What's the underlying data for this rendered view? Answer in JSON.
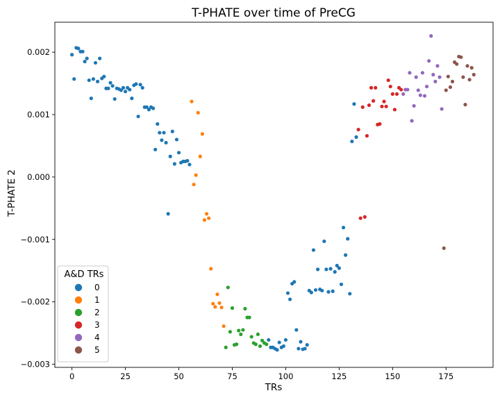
{
  "chart_data": {
    "type": "scatter",
    "title": "T-PHATE over time of PreCG",
    "xlabel": "TRs",
    "ylabel": "T-PHATE 2",
    "xlim": [
      -8,
      197
    ],
    "ylim": [
      -0.00305,
      0.00248
    ],
    "xticks": [
      0,
      25,
      50,
      75,
      100,
      125,
      150,
      175
    ],
    "xtick_labels": [
      "0",
      "25",
      "50",
      "75",
      "100",
      "125",
      "150",
      "175"
    ],
    "yticks": [
      -0.003,
      -0.002,
      -0.001,
      0.0,
      0.001,
      0.002
    ],
    "ytick_labels": [
      "−0.003",
      "−0.002",
      "−0.001",
      "0.000",
      "0.001",
      "0.002"
    ],
    "grid": false,
    "legend": {
      "title": "A&D TRs",
      "placement": "lower-left",
      "entries": [
        "0",
        "1",
        "2",
        "3",
        "4",
        "5"
      ]
    },
    "colors": [
      "#1f77b4",
      "#ff7f0e",
      "#2ca02c",
      "#d62728",
      "#9467bd",
      "#8c564b"
    ],
    "series": [
      {
        "name": "0",
        "color": "#1f77b4",
        "points": [
          [
            0,
            0.00196
          ],
          [
            1,
            0.00157
          ],
          [
            2,
            0.00207
          ],
          [
            3,
            0.00206
          ],
          [
            4,
            0.00201
          ],
          [
            5,
            0.00201
          ],
          [
            6,
            0.00185
          ],
          [
            7,
            0.0019
          ],
          [
            8,
            0.00155
          ],
          [
            9,
            0.00126
          ],
          [
            10,
            0.00157
          ],
          [
            11,
            0.00183
          ],
          [
            12,
            0.00153
          ],
          [
            13,
            0.0019
          ],
          [
            14,
            0.00158
          ],
          [
            15,
            0.00161
          ],
          [
            16,
            0.00142
          ],
          [
            17,
            0.00142
          ],
          [
            18,
            0.00151
          ],
          [
            19,
            0.00146
          ],
          [
            20,
            0.00125
          ],
          [
            21,
            0.00142
          ],
          [
            22,
            0.00141
          ],
          [
            23,
            0.00139
          ],
          [
            24,
            0.00143
          ],
          [
            25,
            0.00137
          ],
          [
            26,
            0.00143
          ],
          [
            27,
            0.0014
          ],
          [
            28,
            0.00126
          ],
          [
            29,
            0.00147
          ],
          [
            30,
            0.00149
          ],
          [
            31,
            0.00097
          ],
          [
            32,
            0.00148
          ],
          [
            33,
            0.00143
          ],
          [
            34,
            0.00112
          ],
          [
            35,
            0.00112
          ],
          [
            36,
            0.00108
          ],
          [
            37,
            0.00112
          ],
          [
            38,
            0.0011
          ],
          [
            39,
            0.00044
          ],
          [
            40,
            0.00085
          ],
          [
            41,
            0.00071
          ],
          [
            42,
            0.00059
          ],
          [
            43,
            0.00071
          ],
          [
            44,
            0.00055
          ],
          [
            45,
            -0.00059
          ],
          [
            46,
            0.00033
          ],
          [
            47,
            0.00073
          ],
          [
            48,
            0.00021
          ],
          [
            49,
            0.0006
          ],
          [
            50,
            0.00039
          ],
          [
            51,
            0.00023
          ],
          [
            52,
            0.00025
          ],
          [
            53,
            0.00025
          ],
          [
            54,
            0.00026
          ],
          [
            55,
            0.0002
          ],
          [
            92,
            -0.00261
          ],
          [
            93,
            -0.00273
          ],
          [
            94,
            -0.00273
          ],
          [
            95,
            -0.00275
          ],
          [
            96,
            -0.00277
          ],
          [
            97,
            -0.00265
          ],
          [
            98,
            -0.00273
          ],
          [
            99,
            -0.00271
          ],
          [
            100,
            -0.00261
          ],
          [
            101,
            -0.00186
          ],
          [
            102,
            -0.00196
          ],
          [
            103,
            -0.00171
          ],
          [
            104,
            -0.00168
          ],
          [
            105,
            -0.00245
          ],
          [
            106,
            -0.00275
          ],
          [
            107,
            -0.00264
          ],
          [
            108,
            -0.00276
          ],
          [
            109,
            -0.00275
          ],
          [
            110,
            -0.00269
          ],
          [
            111,
            -0.00182
          ],
          [
            112,
            -0.00185
          ],
          [
            113,
            -0.00117
          ],
          [
            114,
            -0.00181
          ],
          [
            115,
            -0.00148
          ],
          [
            116,
            -0.0018
          ],
          [
            117,
            -0.00182
          ],
          [
            118,
            -0.00103
          ],
          [
            119,
            -0.00148
          ],
          [
            120,
            -0.00184
          ],
          [
            121,
            -0.00147
          ],
          [
            122,
            -0.00183
          ],
          [
            123,
            -0.00152
          ],
          [
            124,
            -0.00142
          ],
          [
            125,
            -0.00146
          ],
          [
            126,
            -0.00172
          ],
          [
            127,
            -0.00081
          ],
          [
            128,
            -0.00125
          ],
          [
            129,
            -0.00099
          ],
          [
            130,
            -0.00187
          ],
          [
            131,
            0.00057
          ],
          [
            132,
            0.00117
          ],
          [
            133,
            0.00064
          ]
        ]
      },
      {
        "name": "1",
        "color": "#ff7f0e",
        "points": [
          [
            56,
            0.00121
          ],
          [
            57,
            -0.00012
          ],
          [
            58,
            3e-05
          ],
          [
            59,
            0.00103
          ],
          [
            60,
            0.00033
          ],
          [
            61,
            0.00069
          ],
          [
            62,
            -0.00069
          ],
          [
            63,
            -0.00059
          ],
          [
            64,
            -0.00066
          ],
          [
            65,
            -0.00147
          ],
          [
            66,
            -0.00203
          ],
          [
            67,
            -0.00208
          ],
          [
            68,
            -0.00188
          ],
          [
            69,
            -0.00202
          ],
          [
            70,
            -0.00209
          ],
          [
            71,
            -0.00239
          ]
        ]
      },
      {
        "name": "2",
        "color": "#2ca02c",
        "points": [
          [
            72,
            -0.00273
          ],
          [
            73,
            -0.00177
          ],
          [
            74,
            -0.00248
          ],
          [
            75,
            -0.0021
          ],
          [
            76,
            -0.00269
          ],
          [
            77,
            -0.00268
          ],
          [
            78,
            -0.00246
          ],
          [
            79,
            -0.00252
          ],
          [
            80,
            -0.00245
          ],
          [
            81,
            -0.00211
          ],
          [
            82,
            -0.00225
          ],
          [
            83,
            -0.00225
          ],
          [
            84,
            -0.00256
          ],
          [
            85,
            -0.00266
          ],
          [
            86,
            -0.00268
          ],
          [
            87,
            -0.00252
          ],
          [
            88,
            -0.00271
          ],
          [
            89,
            -0.00262
          ],
          [
            90,
            -0.00266
          ],
          [
            91,
            -0.00268
          ]
        ]
      },
      {
        "name": "3",
        "color": "#d62728",
        "points": [
          [
            134,
            0.00076
          ],
          [
            135,
            -0.00066
          ],
          [
            136,
            0.00112
          ],
          [
            137,
            -0.00064
          ],
          [
            138,
            0.00066
          ],
          [
            139,
            0.00115
          ],
          [
            140,
            0.00143
          ],
          [
            141,
            0.00122
          ],
          [
            142,
            0.00143
          ],
          [
            143,
            0.00084
          ],
          [
            144,
            0.00085
          ],
          [
            145,
            0.00113
          ],
          [
            146,
            0.00121
          ],
          [
            147,
            0.00113
          ],
          [
            148,
            0.00155
          ],
          [
            149,
            0.00145
          ],
          [
            150,
            0.00133
          ],
          [
            151,
            0.00108
          ],
          [
            152,
            0.00133
          ],
          [
            153,
            0.00143
          ],
          [
            154,
            0.0014
          ]
        ]
      },
      {
        "name": "4",
        "color": "#9467bd",
        "points": [
          [
            155,
            0.00133
          ],
          [
            156,
            0.0014
          ],
          [
            157,
            0.0014
          ],
          [
            158,
            0.00167
          ],
          [
            159,
            0.0009
          ],
          [
            160,
            0.00114
          ],
          [
            161,
            0.0016
          ],
          [
            162,
            0.00139
          ],
          [
            163,
            0.00131
          ],
          [
            164,
            0.00167
          ],
          [
            165,
            0.0013
          ],
          [
            166,
            0.00145
          ],
          [
            167,
            0.00186
          ],
          [
            168,
            0.00226
          ],
          [
            169,
            0.00164
          ],
          [
            170,
            0.00153
          ],
          [
            171,
            0.00178
          ],
          [
            172,
            0.0016
          ],
          [
            173,
            0.00109
          ]
        ]
      },
      {
        "name": "5",
        "color": "#8c564b",
        "points": [
          [
            174,
            -0.00114
          ],
          [
            175,
            0.00139
          ],
          [
            176,
            0.00161
          ],
          [
            177,
            0.00144
          ],
          [
            178,
            0.00153
          ],
          [
            179,
            0.00184
          ],
          [
            180,
            0.00181
          ],
          [
            181,
            0.00193
          ],
          [
            182,
            0.00192
          ],
          [
            183,
            0.0016
          ],
          [
            184,
            0.00116
          ],
          [
            185,
            0.00178
          ],
          [
            186,
            0.00156
          ],
          [
            187,
            0.00175
          ],
          [
            188,
            0.00164
          ]
        ]
      }
    ]
  }
}
